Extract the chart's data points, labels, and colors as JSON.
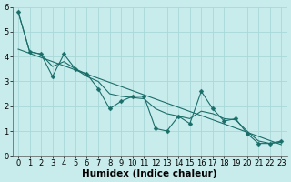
{
  "xlabel": "Humidex (Indice chaleur)",
  "background_color": "#c8ecec",
  "line_color": "#1a6e6a",
  "grid_color": "#a8d8d8",
  "x_data": [
    0,
    1,
    2,
    3,
    4,
    5,
    6,
    7,
    8,
    9,
    10,
    11,
    12,
    13,
    14,
    15,
    16,
    17,
    18,
    19,
    20,
    21,
    22,
    23
  ],
  "y_data": [
    5.8,
    4.2,
    4.1,
    3.2,
    4.1,
    3.5,
    3.3,
    2.7,
    1.9,
    2.2,
    2.4,
    2.4,
    1.1,
    1.0,
    1.6,
    1.3,
    2.6,
    1.9,
    1.4,
    1.5,
    0.9,
    0.5,
    0.5,
    0.6
  ],
  "xlim": [
    -0.5,
    23.5
  ],
  "ylim": [
    0,
    6
  ],
  "yticks": [
    0,
    1,
    2,
    3,
    4,
    5,
    6
  ],
  "xticks": [
    0,
    1,
    2,
    3,
    4,
    5,
    6,
    7,
    8,
    9,
    10,
    11,
    12,
    13,
    14,
    15,
    16,
    17,
    18,
    19,
    20,
    21,
    22,
    23
  ],
  "trend_x": [
    0,
    23
  ],
  "trend_y": [
    4.3,
    0.45
  ],
  "smooth_y": [
    5.8,
    4.2,
    4.1,
    3.6,
    3.8,
    3.5,
    3.2,
    3.0,
    2.5,
    2.4,
    2.35,
    2.3,
    1.9,
    1.7,
    1.6,
    1.5,
    1.8,
    1.7,
    1.5,
    1.45,
    1.0,
    0.6,
    0.5,
    0.55
  ],
  "font_size": 6,
  "marker_size": 2.5,
  "line_width": 0.8
}
